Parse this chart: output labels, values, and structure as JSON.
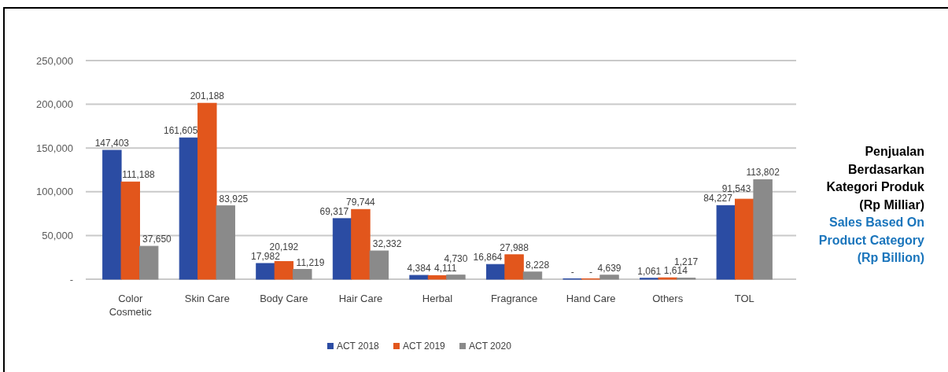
{
  "chart_data": {
    "type": "bar",
    "title": "Penjualan Berdasarkan Kategori Produk (Rp Milliar)",
    "subtitle": "Sales Based On Product Category (Rp Billion)",
    "categories": [
      "Color Cosmetic",
      "Skin Care",
      "Body Care",
      "Hair Care",
      "Herbal",
      "Fragrance",
      "Hand Care",
      "Others",
      "TOL"
    ],
    "series": [
      {
        "name": "ACT 2018",
        "color": "#2b4ca3",
        "values": [
          147403,
          161605,
          17982,
          69317,
          4384,
          16864,
          0,
          1061,
          84227
        ],
        "value_labels": [
          "147,403",
          "161,605",
          "17,982",
          "69,317",
          "4,384",
          "16,864",
          "-",
          "1,061",
          "84,227"
        ]
      },
      {
        "name": "ACT 2019",
        "color": "#e2561c",
        "values": [
          111188,
          201188,
          20192,
          79744,
          4111,
          27988,
          0,
          1614,
          91543
        ],
        "value_labels": [
          "111,188",
          "201,188",
          "20,192",
          "79,744",
          "4,111",
          "27,988",
          "-",
          "1,614",
          "91,543"
        ]
      },
      {
        "name": "ACT 2020",
        "color": "#8a8a8a",
        "values": [
          37650,
          83925,
          11219,
          32332,
          4730,
          8228,
          4639,
          1217,
          113802
        ],
        "value_labels": [
          "37,650",
          "83,925",
          "11,219",
          "32,332",
          "4,730",
          "8,228",
          "4,639",
          "1,217",
          "113,802"
        ]
      }
    ],
    "ylim": [
      0,
      250000
    ],
    "yticks": [
      {
        "value": 0,
        "label": "-"
      },
      {
        "value": 50000,
        "label": "50,000"
      },
      {
        "value": 100000,
        "label": "100,000"
      },
      {
        "value": 150000,
        "label": "150,000"
      },
      {
        "value": 200000,
        "label": "200,000"
      },
      {
        "value": 250000,
        "label": "250,000"
      }
    ],
    "grid": "y",
    "legend": "bottom"
  }
}
